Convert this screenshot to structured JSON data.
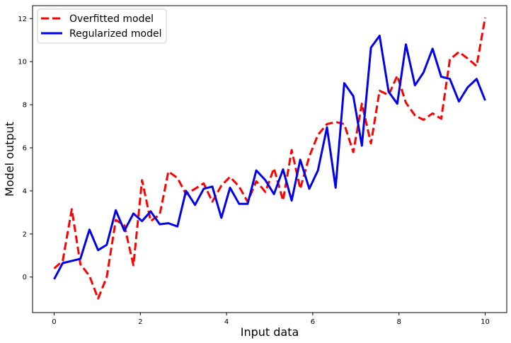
{
  "chart_data": {
    "type": "line",
    "title": "",
    "xlabel": "Input data",
    "ylabel": "Model output",
    "xlim": [
      -0.5,
      10.5
    ],
    "ylim": [
      -1.65,
      12.6
    ],
    "xticks": [
      0,
      2,
      4,
      6,
      8,
      10
    ],
    "yticks": [
      0,
      2,
      4,
      6,
      8,
      10,
      12
    ],
    "grid": false,
    "legend": "upper-left",
    "series": [
      {
        "name": "Overfitted model",
        "color": "#ff0000",
        "style": "dashed",
        "x": [
          0,
          0.2,
          0.41,
          0.61,
          0.82,
          1.02,
          1.22,
          1.43,
          1.63,
          1.84,
          2.04,
          2.24,
          2.45,
          2.65,
          2.86,
          3.06,
          3.27,
          3.47,
          3.67,
          3.88,
          4.08,
          4.29,
          4.49,
          4.69,
          4.9,
          5.1,
          5.31,
          5.51,
          5.71,
          5.92,
          6.12,
          6.33,
          6.53,
          6.73,
          6.94,
          7.14,
          7.35,
          7.55,
          7.76,
          7.96,
          8.16,
          8.37,
          8.57,
          8.78,
          8.98,
          9.18,
          9.39,
          9.59,
          9.8,
          10
        ],
        "y": [
          0.4,
          0.75,
          3.15,
          0.6,
          0.05,
          -1.0,
          0.0,
          2.65,
          2.4,
          0.55,
          4.5,
          2.6,
          2.9,
          4.9,
          4.6,
          3.85,
          4.1,
          4.35,
          3.5,
          4.25,
          4.65,
          4.2,
          3.5,
          4.45,
          3.95,
          5.05,
          3.55,
          5.9,
          4.1,
          5.6,
          6.6,
          7.1,
          7.2,
          7.1,
          5.8,
          8.05,
          6.2,
          8.65,
          8.45,
          9.35,
          8.1,
          7.5,
          7.3,
          7.6,
          7.35,
          10.1,
          10.45,
          10.15,
          9.8,
          12.05
        ]
      },
      {
        "name": "Regularized model",
        "color": "#0000ee",
        "style": "solid",
        "x": [
          0,
          0.2,
          0.41,
          0.61,
          0.82,
          1.02,
          1.22,
          1.43,
          1.63,
          1.84,
          2.04,
          2.24,
          2.45,
          2.65,
          2.86,
          3.06,
          3.27,
          3.47,
          3.67,
          3.88,
          4.08,
          4.29,
          4.49,
          4.69,
          4.9,
          5.1,
          5.31,
          5.51,
          5.71,
          5.92,
          6.12,
          6.33,
          6.53,
          6.73,
          6.94,
          7.14,
          7.35,
          7.55,
          7.76,
          7.96,
          8.16,
          8.37,
          8.57,
          8.78,
          8.98,
          9.18,
          9.39,
          9.59,
          9.8,
          10
        ],
        "y": [
          -0.1,
          0.65,
          0.75,
          0.85,
          2.2,
          1.25,
          1.5,
          3.1,
          2.15,
          2.95,
          2.6,
          3.05,
          2.45,
          2.5,
          2.35,
          4.0,
          3.35,
          4.1,
          4.2,
          2.75,
          4.15,
          3.4,
          3.4,
          4.95,
          4.5,
          3.85,
          5.0,
          3.55,
          5.45,
          4.1,
          4.95,
          6.95,
          4.15,
          9.0,
          8.4,
          6.1,
          10.65,
          11.2,
          8.6,
          8.05,
          10.8,
          8.9,
          9.5,
          10.6,
          9.3,
          9.2,
          8.15,
          8.8,
          9.2,
          8.2
        ]
      }
    ]
  }
}
